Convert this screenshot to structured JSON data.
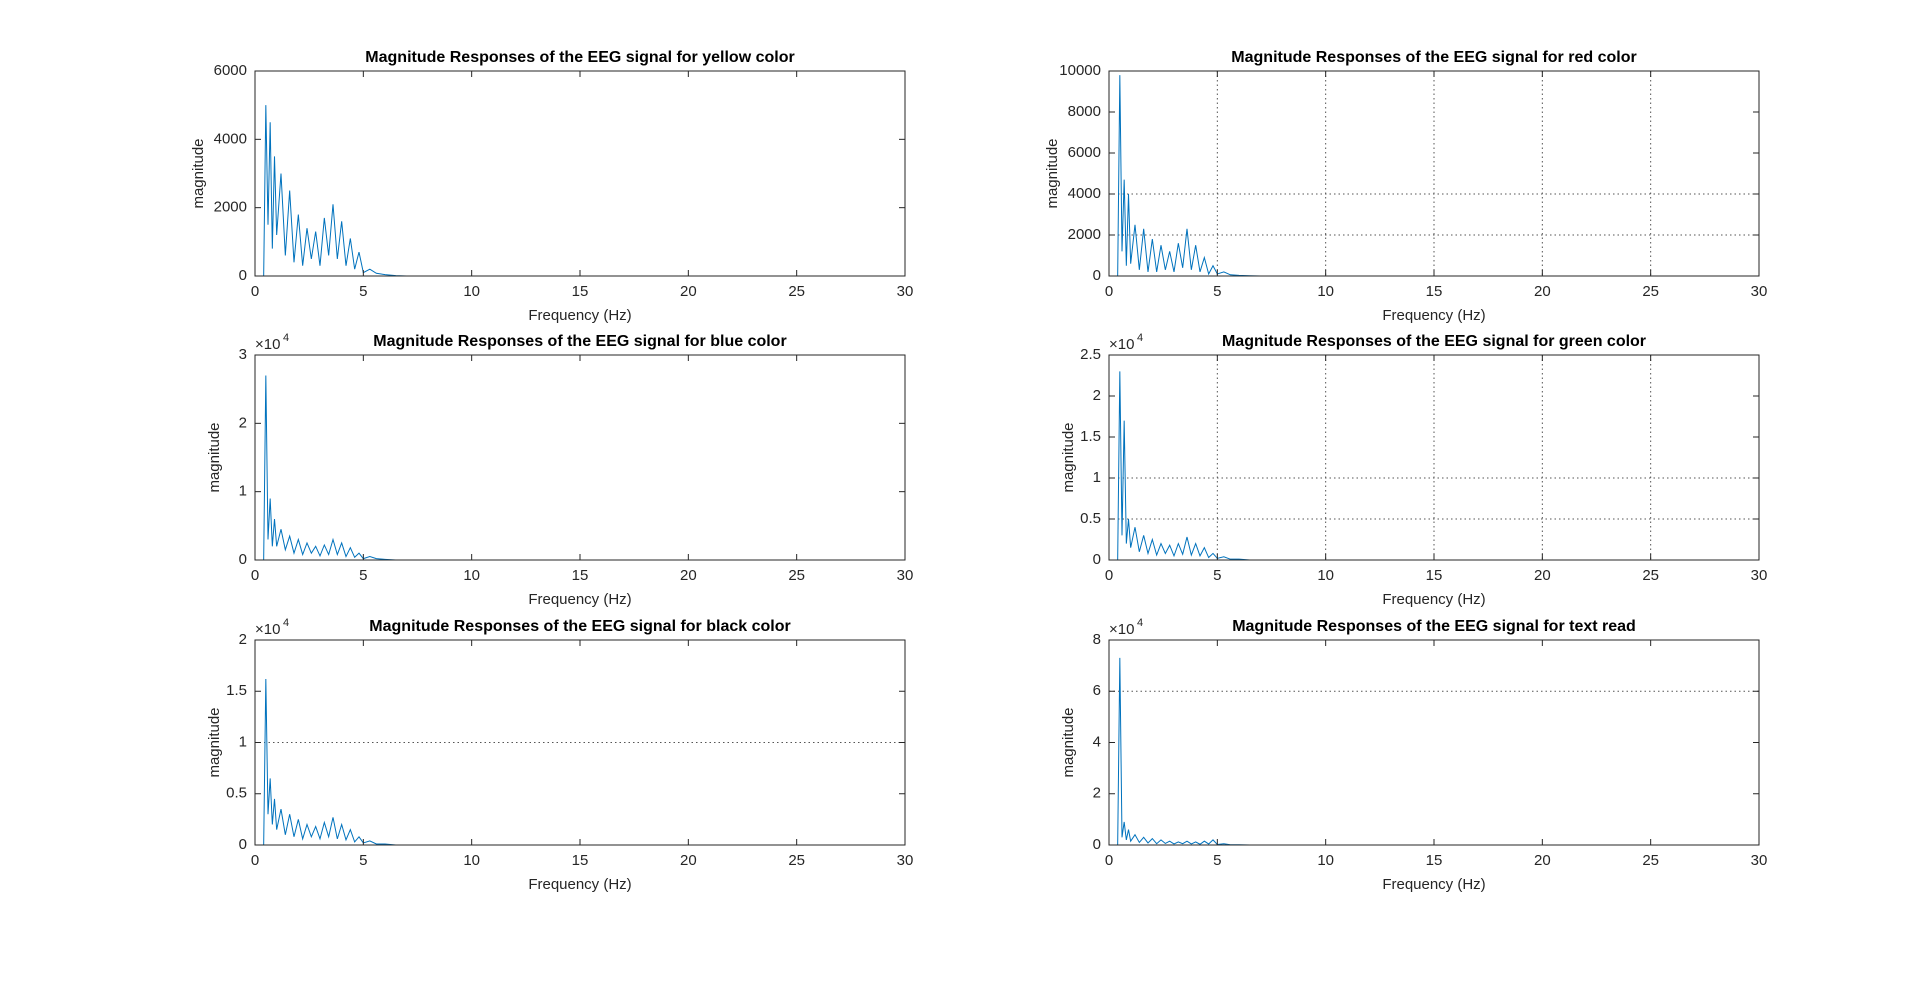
{
  "chart_data": [
    {
      "type": "line",
      "title": "Magnitude Responses of the EEG signal for yellow color",
      "x_label": "Frequency (Hz)",
      "y_label": "magnitude",
      "x": [
        0.4,
        0.5,
        0.6,
        0.7,
        0.8,
        0.9,
        1.0,
        1.2,
        1.4,
        1.6,
        1.8,
        2.0,
        2.2,
        2.4,
        2.6,
        2.8,
        3.0,
        3.2,
        3.4,
        3.6,
        3.8,
        4.0,
        4.2,
        4.4,
        4.6,
        4.8,
        5.0,
        5.3,
        5.6,
        6.0,
        6.5,
        7,
        30
      ],
      "values": [
        0,
        5000,
        1500,
        4500,
        800,
        3500,
        1200,
        3000,
        600,
        2500,
        400,
        1800,
        300,
        1400,
        500,
        1300,
        300,
        1700,
        600,
        2100,
        500,
        1600,
        300,
        1100,
        200,
        700,
        100,
        200,
        80,
        40,
        10,
        0,
        0
      ],
      "color": "#0072bd",
      "xlim": [
        0,
        30
      ],
      "xticks": [
        0,
        5,
        10,
        15,
        20,
        25,
        30
      ],
      "ylim": [
        0,
        6000
      ],
      "yticks": [
        0,
        2000,
        4000,
        6000
      ],
      "xgrid": false,
      "ygrid_at": []
    },
    {
      "type": "line",
      "title": "Magnitude Responses of the EEG signal for red color",
      "x_label": "Frequency (Hz)",
      "y_label": "magnitude",
      "x": [
        0.4,
        0.5,
        0.6,
        0.7,
        0.8,
        0.9,
        1.0,
        1.2,
        1.4,
        1.6,
        1.8,
        2.0,
        2.2,
        2.4,
        2.6,
        2.8,
        3.0,
        3.2,
        3.4,
        3.6,
        3.8,
        4.0,
        4.2,
        4.4,
        4.6,
        4.8,
        5.0,
        5.3,
        5.6,
        6.0,
        6.5,
        7,
        30
      ],
      "values": [
        0,
        9800,
        1200,
        4700,
        500,
        4000,
        600,
        2500,
        300,
        2300,
        200,
        1800,
        200,
        1500,
        300,
        1200,
        200,
        1600,
        400,
        2300,
        300,
        1500,
        200,
        900,
        100,
        500,
        100,
        200,
        60,
        30,
        10,
        0,
        0
      ],
      "color": "#0072bd",
      "xlim": [
        0,
        30
      ],
      "xticks": [
        0,
        5,
        10,
        15,
        20,
        25,
        30
      ],
      "ylim": [
        0,
        10000
      ],
      "yticks": [
        0,
        2000,
        4000,
        6000,
        8000,
        10000
      ],
      "xgrid": true,
      "ygrid_at": [
        2000,
        4000
      ]
    },
    {
      "type": "line",
      "title": "Magnitude Responses of the EEG signal for blue color",
      "x_label": "Frequency (Hz)",
      "y_label": "magnitude",
      "y_multiplier": {
        "base": "×10",
        "power": "4"
      },
      "x": [
        0.4,
        0.5,
        0.6,
        0.7,
        0.8,
        0.9,
        1.0,
        1.2,
        1.4,
        1.6,
        1.8,
        2.0,
        2.2,
        2.4,
        2.6,
        2.8,
        3.0,
        3.2,
        3.4,
        3.6,
        3.8,
        4.0,
        4.2,
        4.4,
        4.6,
        4.8,
        5.0,
        5.3,
        5.6,
        6.0,
        6.5,
        7,
        30
      ],
      "values": [
        0,
        2.7,
        0.3,
        0.9,
        0.2,
        0.6,
        0.2,
        0.45,
        0.15,
        0.35,
        0.1,
        0.3,
        0.08,
        0.25,
        0.1,
        0.2,
        0.06,
        0.22,
        0.08,
        0.3,
        0.08,
        0.25,
        0.05,
        0.18,
        0.04,
        0.1,
        0.02,
        0.05,
        0.02,
        0.01,
        0,
        0,
        0
      ],
      "color": "#0072bd",
      "xlim": [
        0,
        30
      ],
      "xticks": [
        0,
        5,
        10,
        15,
        20,
        25,
        30
      ],
      "ylim": [
        0,
        3
      ],
      "yticks": [
        0,
        1,
        2,
        3
      ],
      "xgrid": false,
      "ygrid_at": []
    },
    {
      "type": "line",
      "title": "Magnitude Responses of the EEG signal for green color",
      "x_label": "Frequency (Hz)",
      "y_label": "magnitude",
      "y_multiplier": {
        "base": "×10",
        "power": "4"
      },
      "x": [
        0.4,
        0.5,
        0.6,
        0.7,
        0.8,
        0.9,
        1.0,
        1.2,
        1.4,
        1.6,
        1.8,
        2.0,
        2.2,
        2.4,
        2.6,
        2.8,
        3.0,
        3.2,
        3.4,
        3.6,
        3.8,
        4.0,
        4.2,
        4.4,
        4.6,
        4.8,
        5.0,
        5.3,
        5.6,
        6.0,
        6.5,
        7,
        30
      ],
      "values": [
        0,
        2.3,
        0.3,
        1.7,
        0.2,
        0.5,
        0.15,
        0.4,
        0.1,
        0.3,
        0.08,
        0.25,
        0.06,
        0.2,
        0.08,
        0.18,
        0.05,
        0.2,
        0.07,
        0.28,
        0.06,
        0.2,
        0.05,
        0.15,
        0.03,
        0.08,
        0.02,
        0.04,
        0.01,
        0.01,
        0,
        0,
        0
      ],
      "color": "#0072bd",
      "xlim": [
        0,
        30
      ],
      "xticks": [
        0,
        5,
        10,
        15,
        20,
        25,
        30
      ],
      "ylim": [
        0,
        2.5
      ],
      "yticks": [
        0,
        0.5,
        1,
        1.5,
        2,
        2.5
      ],
      "xgrid": true,
      "ygrid_at": [
        0.5,
        1
      ]
    },
    {
      "type": "line",
      "title": "Magnitude Responses of the EEG signal for black color",
      "x_label": "Frequency (Hz)",
      "y_label": "magnitude",
      "y_multiplier": {
        "base": "×10",
        "power": "4"
      },
      "x": [
        0.4,
        0.5,
        0.6,
        0.7,
        0.8,
        0.9,
        1.0,
        1.2,
        1.4,
        1.6,
        1.8,
        2.0,
        2.2,
        2.4,
        2.6,
        2.8,
        3.0,
        3.2,
        3.4,
        3.6,
        3.8,
        4.0,
        4.2,
        4.4,
        4.6,
        4.8,
        5.0,
        5.3,
        5.6,
        6.0,
        6.5,
        7,
        30
      ],
      "values": [
        0,
        1.62,
        0.3,
        0.65,
        0.2,
        0.45,
        0.15,
        0.35,
        0.1,
        0.3,
        0.08,
        0.25,
        0.06,
        0.2,
        0.08,
        0.18,
        0.06,
        0.22,
        0.08,
        0.27,
        0.06,
        0.2,
        0.05,
        0.15,
        0.03,
        0.08,
        0.02,
        0.04,
        0.01,
        0.01,
        0,
        0,
        0
      ],
      "color": "#0072bd",
      "xlim": [
        0,
        30
      ],
      "xticks": [
        0,
        5,
        10,
        15,
        20,
        25,
        30
      ],
      "ylim": [
        0,
        2
      ],
      "yticks": [
        0,
        0.5,
        1,
        1.5,
        2
      ],
      "xgrid": false,
      "ygrid_at": [
        1
      ]
    },
    {
      "type": "line",
      "title": "Magnitude Responses of the EEG signal for text read",
      "x_label": "Frequency (Hz)",
      "y_label": "magnitude",
      "y_multiplier": {
        "base": "×10",
        "power": "4"
      },
      "x": [
        0.4,
        0.5,
        0.6,
        0.7,
        0.8,
        0.9,
        1.0,
        1.2,
        1.4,
        1.6,
        1.8,
        2.0,
        2.2,
        2.4,
        2.6,
        2.8,
        3.0,
        3.2,
        3.4,
        3.6,
        3.8,
        4.0,
        4.2,
        4.4,
        4.6,
        4.8,
        5.0,
        5.3,
        5.6,
        6.0,
        6.5,
        7,
        30
      ],
      "values": [
        0,
        7.3,
        0.3,
        0.9,
        0.2,
        0.6,
        0.15,
        0.4,
        0.1,
        0.3,
        0.08,
        0.25,
        0.05,
        0.2,
        0.06,
        0.15,
        0.04,
        0.12,
        0.05,
        0.15,
        0.04,
        0.12,
        0.03,
        0.15,
        0.04,
        0.2,
        0.02,
        0.05,
        0.01,
        0.01,
        0,
        0,
        0
      ],
      "color": "#0072bd",
      "xlim": [
        0,
        30
      ],
      "xticks": [
        0,
        5,
        10,
        15,
        20,
        25,
        30
      ],
      "ylim": [
        0,
        8
      ],
      "yticks": [
        0,
        2,
        4,
        6,
        8
      ],
      "xgrid": false,
      "ygrid_at": [
        6
      ]
    }
  ]
}
